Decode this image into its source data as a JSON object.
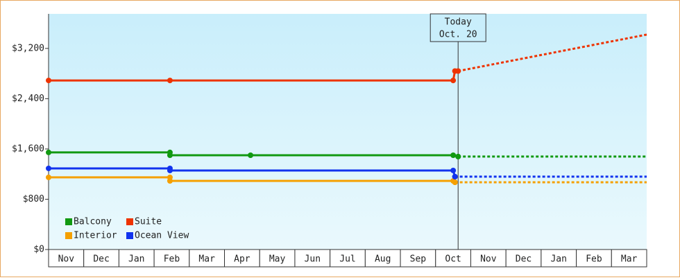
{
  "chart_data": {
    "type": "line",
    "categories": [
      "Nov",
      "Dec",
      "Jan",
      "Feb",
      "Mar",
      "Apr",
      "May",
      "Jun",
      "Jul",
      "Aug",
      "Sep",
      "Oct",
      "Nov",
      "Dec",
      "Jan",
      "Feb",
      "Mar"
    ],
    "xlim": [
      0,
      17
    ],
    "ylim": [
      0,
      3750
    ],
    "yticks": [
      {
        "value": 0,
        "label": "$0"
      },
      {
        "value": 800,
        "label": "$800"
      },
      {
        "value": 1600,
        "label": "$1,600"
      },
      {
        "value": 2400,
        "label": "$2,400"
      },
      {
        "value": 3200,
        "label": "$3,200"
      }
    ],
    "today": {
      "x": 11.64,
      "label": [
        "Today",
        "Oct. 20"
      ]
    },
    "series": [
      {
        "name": "Balcony",
        "color": "#119911",
        "x": [
          0,
          3.45,
          3.45,
          5.74,
          11.5,
          11.64
        ],
        "values": [
          1545,
          1545,
          1500,
          1500,
          1500,
          1479
        ],
        "forecast_x": [
          11.64,
          17
        ],
        "forecast_values": [
          1479,
          1479
        ]
      },
      {
        "name": "Suite",
        "color": "#ee3300",
        "x": [
          0,
          3.45,
          11.5,
          11.55
        ],
        "values": [
          2690,
          2690,
          2690,
          2840
        ],
        "forecast_x": [
          11.64,
          17
        ],
        "forecast_values": [
          2840,
          3420
        ]
      },
      {
        "name": "Interior",
        "color": "#f5a000",
        "x": [
          0,
          3.45,
          3.45,
          11.5,
          11.55
        ],
        "values": [
          1148,
          1148,
          1092,
          1092,
          1070
        ],
        "forecast_x": [
          11.55,
          17
        ],
        "forecast_values": [
          1070,
          1070
        ]
      },
      {
        "name": "Ocean View",
        "color": "#1133ee",
        "x": [
          0,
          3.45,
          3.45,
          11.5,
          11.55
        ],
        "values": [
          1291,
          1291,
          1258,
          1258,
          1159
        ],
        "forecast_x": [
          11.55,
          17
        ],
        "forecast_values": [
          1159,
          1159
        ]
      }
    ]
  }
}
